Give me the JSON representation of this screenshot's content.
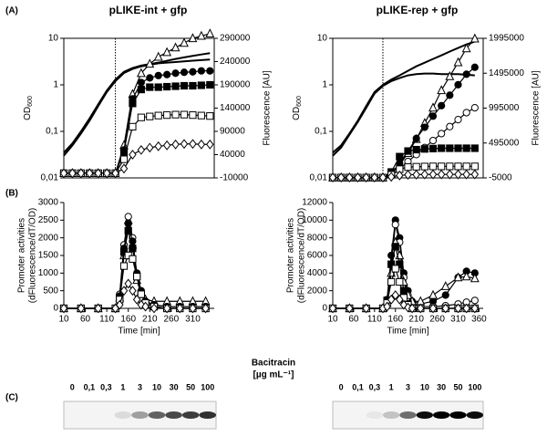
{
  "panel_labels": [
    "(A)",
    "(B)",
    "(C)"
  ],
  "chart_data": [
    {
      "type": "line",
      "title": "pLIKE-int + gfp",
      "ylabel": "OD",
      "ylabel_sub": "600",
      "y2label": "Fluorescence [AU]",
      "log_y": true,
      "ylim": [
        0.01,
        10
      ],
      "yticks": [
        {
          "value": 0.01,
          "label": "0,01"
        },
        {
          "value": 0.1,
          "label": "0,1"
        },
        1,
        10
      ],
      "y2lim": [
        -10000,
        290000
      ],
      "y2ticks": [
        -10000,
        40000,
        90000,
        140000,
        190000,
        240000,
        290000
      ],
      "xlim": [
        10,
        360
      ],
      "vline": 130,
      "x": [
        10,
        30,
        50,
        70,
        90,
        110,
        130,
        150,
        170,
        190,
        210,
        230,
        250,
        270,
        290,
        310,
        330,
        350
      ],
      "series": [
        {
          "color": "#000000",
          "marker": "none",
          "values": [
            0.03,
            0.05,
            0.09,
            0.17,
            0.35,
            0.7,
            1.2,
            1.8,
            2.2,
            2.5,
            2.7,
            2.9,
            3.0,
            3.1,
            3.2,
            3.3,
            3.4,
            3.5
          ]
        },
        {
          "color": "#000000",
          "marker": "none",
          "values": [
            0.035,
            0.055,
            0.1,
            0.19,
            0.38,
            0.75,
            1.3,
            1.9,
            2.3,
            2.6,
            2.8,
            3.0,
            3.3,
            3.6,
            3.9,
            4.2,
            4.5,
            4.8
          ]
        },
        {
          "color": "#000000",
          "marker": "triangle-open",
          "axis": "y2",
          "values": [
            0,
            0,
            0,
            0,
            0,
            0,
            0,
            60000,
            170000,
            215000,
            235000,
            250000,
            260000,
            270000,
            280000,
            290000,
            295000,
            300000
          ]
        },
        {
          "color": "#000000",
          "marker": "circle-filled",
          "axis": "y2",
          "values": [
            0,
            0,
            0,
            0,
            0,
            0,
            0,
            50000,
            160000,
            195000,
            205000,
            210000,
            212000,
            215000,
            217000,
            218000,
            220000,
            220000
          ]
        },
        {
          "color": "#000000",
          "marker": "square-filled",
          "axis": "y2",
          "values": [
            0,
            0,
            0,
            0,
            0,
            0,
            0,
            45000,
            150000,
            180000,
            185000,
            185000,
            186000,
            187000,
            188000,
            188000,
            189000,
            190000
          ]
        },
        {
          "color": "#000000",
          "marker": "square-open",
          "axis": "y2",
          "values": [
            0,
            0,
            0,
            0,
            0,
            0,
            0,
            30000,
            100000,
            120000,
            122000,
            124000,
            125000,
            126000,
            126000,
            125000,
            124000,
            123000
          ]
        },
        {
          "color": "#000000",
          "marker": "diamond-open",
          "axis": "y2",
          "values": [
            0,
            0,
            0,
            0,
            0,
            0,
            0,
            10000,
            40000,
            50000,
            55000,
            58000,
            60000,
            62000,
            63000,
            63000,
            62000,
            62000
          ]
        }
      ]
    },
    {
      "type": "line",
      "title": "pLIKE-rep + gfp",
      "ylabel": "OD",
      "ylabel_sub": "600",
      "y2label": "Fluorescence [AU]",
      "log_y": true,
      "ylim": [
        0.01,
        10
      ],
      "yticks": [
        {
          "value": 0.01,
          "label": "0,01"
        },
        {
          "value": 0.1,
          "label": "0,1"
        },
        1,
        10
      ],
      "y2lim": [
        -5000,
        1995000
      ],
      "y2ticks": [
        -5000,
        495000,
        995000,
        1495000,
        1995000
      ],
      "xlim": [
        10,
        370
      ],
      "vline": 130,
      "x": [
        10,
        30,
        50,
        70,
        90,
        110,
        130,
        150,
        170,
        190,
        210,
        230,
        250,
        270,
        290,
        310,
        330,
        350
      ],
      "series": [
        {
          "color": "#000000",
          "marker": "none",
          "values": [
            0.035,
            0.05,
            0.09,
            0.17,
            0.35,
            0.7,
            1.0,
            1.3,
            1.6,
            2.0,
            2.5,
            3.0,
            3.6,
            4.3,
            5.2,
            6.2,
            7.4,
            8.5
          ]
        },
        {
          "color": "#000000",
          "marker": "none",
          "values": [
            0.03,
            0.045,
            0.085,
            0.16,
            0.32,
            0.65,
            0.95,
            1.2,
            1.4,
            1.6,
            1.7,
            1.75,
            1.75,
            1.7,
            1.7,
            1.7,
            1.65,
            1.6
          ]
        },
        {
          "color": "#000000",
          "marker": "triangle-open",
          "axis": "y2",
          "values": [
            0,
            0,
            0,
            0,
            0,
            0,
            0,
            50000,
            180000,
            350000,
            550000,
            780000,
            1000000,
            1250000,
            1450000,
            1650000,
            1850000,
            1990000
          ]
        },
        {
          "color": "#000000",
          "marker": "circle-filled",
          "axis": "y2",
          "values": [
            0,
            0,
            0,
            0,
            0,
            0,
            0,
            60000,
            200000,
            380000,
            560000,
            720000,
            880000,
            1030000,
            1180000,
            1330000,
            1480000,
            1580000
          ]
        },
        {
          "color": "#000000",
          "marker": "circle-open",
          "axis": "y2",
          "values": [
            0,
            0,
            0,
            0,
            0,
            0,
            0,
            30000,
            120000,
            230000,
            330000,
            430000,
            530000,
            630000,
            730000,
            830000,
            930000,
            1000000
          ]
        },
        {
          "color": "#000000",
          "marker": "square-filled",
          "axis": "y2",
          "values": [
            0,
            0,
            0,
            0,
            0,
            0,
            0,
            80000,
            300000,
            380000,
            400000,
            410000,
            415000,
            420000,
            420000,
            420000,
            420000,
            420000
          ]
        },
        {
          "color": "#000000",
          "marker": "square-open",
          "axis": "y2",
          "values": [
            0,
            0,
            0,
            0,
            0,
            0,
            0,
            40000,
            120000,
            150000,
            155000,
            158000,
            160000,
            160000,
            160000,
            160000,
            160000,
            160000
          ]
        },
        {
          "color": "#000000",
          "marker": "diamond-open",
          "axis": "y2",
          "values": [
            0,
            0,
            0,
            0,
            0,
            0,
            0,
            10000,
            30000,
            40000,
            42000,
            44000,
            45000,
            45000,
            45000,
            45000,
            45000,
            45000
          ]
        }
      ]
    },
    {
      "type": "line",
      "ylabel": [
        "Promoter activities",
        "(dFluorescence/dT/OD)"
      ],
      "xlabel": "Time [min]",
      "ylim": [
        0,
        3000
      ],
      "yticks": [
        0,
        500,
        1000,
        1500,
        2000,
        2500,
        3000
      ],
      "xlim": [
        10,
        360
      ],
      "xticks": [
        10,
        60,
        110,
        160,
        210,
        260,
        310
      ],
      "x": [
        10,
        50,
        90,
        130,
        140,
        150,
        160,
        170,
        180,
        190,
        200,
        220,
        250,
        280,
        310,
        340
      ],
      "series": [
        {
          "color": "#000000",
          "marker": "triangle-open",
          "values": [
            0,
            0,
            0,
            0,
            300,
            1500,
            2500,
            1800,
            800,
            400,
            250,
            200,
            200,
            200,
            200,
            200
          ]
        },
        {
          "color": "#000000",
          "marker": "circle-open",
          "values": [
            0,
            0,
            0,
            0,
            400,
            1800,
            2600,
            2000,
            900,
            400,
            200,
            100,
            50,
            50,
            50,
            50
          ]
        },
        {
          "color": "#000000",
          "marker": "circle-filled",
          "values": [
            0,
            0,
            0,
            0,
            350,
            1700,
            2400,
            1900,
            1000,
            500,
            200,
            100,
            50,
            50,
            50,
            50
          ]
        },
        {
          "color": "#000000",
          "marker": "square-filled",
          "values": [
            0,
            0,
            0,
            0,
            300,
            1600,
            2200,
            1700,
            900,
            400,
            150,
            50,
            0,
            0,
            0,
            0
          ]
        },
        {
          "color": "#000000",
          "marker": "square-open",
          "values": [
            0,
            0,
            0,
            0,
            250,
            1200,
            1500,
            1400,
            900,
            400,
            150,
            50,
            0,
            0,
            0,
            0
          ]
        },
        {
          "color": "#000000",
          "marker": "diamond-open",
          "values": [
            0,
            0,
            0,
            0,
            100,
            500,
            700,
            500,
            250,
            100,
            50,
            0,
            0,
            0,
            0,
            0
          ]
        }
      ]
    },
    {
      "type": "line",
      "ylabel": [
        "Promoter activities",
        "(dFluorescence/dT/OD)"
      ],
      "xlabel": "Time [min]",
      "ylim": [
        0,
        12000
      ],
      "yticks": [
        0,
        2000,
        4000,
        6000,
        8000,
        10000,
        12000
      ],
      "xlim": [
        10,
        370
      ],
      "xticks": [
        10,
        60,
        110,
        160,
        210,
        260,
        310,
        360
      ],
      "x": [
        10,
        50,
        90,
        130,
        140,
        150,
        160,
        170,
        180,
        190,
        200,
        220,
        250,
        280,
        310,
        330,
        350
      ],
      "series": [
        {
          "color": "#000000",
          "marker": "circle-filled",
          "values": [
            0,
            0,
            0,
            0,
            1000,
            6000,
            10000,
            8000,
            4000,
            2000,
            800,
            500,
            800,
            1500,
            3500,
            4200,
            4000
          ]
        },
        {
          "color": "#000000",
          "marker": "circle-open",
          "values": [
            0,
            0,
            0,
            0,
            800,
            5000,
            9500,
            7500,
            3500,
            1500,
            500,
            200,
            200,
            300,
            500,
            700,
            900
          ]
        },
        {
          "color": "#000000",
          "marker": "triangle-open",
          "values": [
            0,
            0,
            0,
            0,
            600,
            4000,
            7500,
            6000,
            3000,
            1500,
            800,
            800,
            1500,
            2500,
            3500,
            3600,
            3400
          ]
        },
        {
          "color": "#000000",
          "marker": "square-filled",
          "values": [
            0,
            0,
            0,
            0,
            900,
            5000,
            7000,
            5000,
            2000,
            500,
            0,
            0,
            0,
            0,
            0,
            0,
            0
          ]
        },
        {
          "color": "#000000",
          "marker": "square-open",
          "values": [
            0,
            0,
            0,
            0,
            600,
            3000,
            4500,
            3000,
            1200,
            400,
            0,
            0,
            0,
            0,
            0,
            0,
            0
          ]
        },
        {
          "color": "#000000",
          "marker": "diamond-open",
          "values": [
            0,
            0,
            0,
            0,
            200,
            1000,
            1500,
            1000,
            400,
            100,
            0,
            0,
            0,
            0,
            0,
            0,
            0
          ]
        }
      ]
    }
  ],
  "blot_label": [
    "Bacitracin",
    "[µg mL⁻¹]"
  ],
  "blots": [
    {
      "lanes": [
        "0",
        "0,1",
        "0,3",
        "1",
        "3",
        "10",
        "30",
        "50",
        "100"
      ],
      "intensity": [
        0,
        0,
        0,
        0.1,
        0.35,
        0.6,
        0.7,
        0.75,
        0.8
      ]
    },
    {
      "lanes": [
        "0",
        "0,1",
        "0,3",
        "1",
        "3",
        "10",
        "30",
        "50",
        "100"
      ],
      "intensity": [
        0,
        0,
        0.05,
        0.2,
        0.55,
        0.95,
        1,
        1,
        0.95
      ]
    }
  ]
}
